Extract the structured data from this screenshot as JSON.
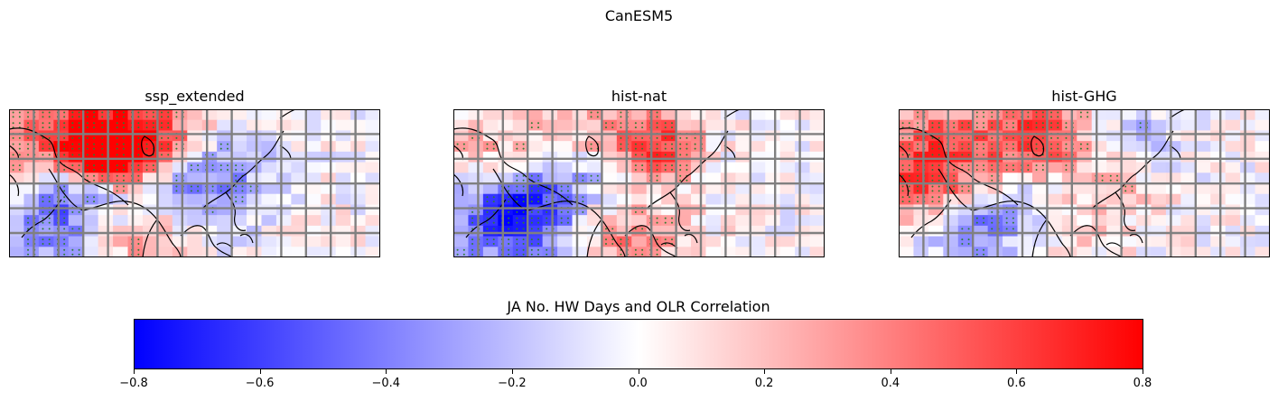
{
  "figure": {
    "suptitle": "CanESM5"
  },
  "panels": [
    {
      "title": "ssp_extended",
      "seed": 11,
      "blobs": [
        {
          "c": 1.5,
          "r": 2.5,
          "s": 4,
          "v": 0.45
        },
        {
          "c": 9,
          "r": 1.5,
          "s": 3,
          "v": 0.5
        },
        {
          "c": 5.5,
          "r": 3,
          "s": 3,
          "v": 0.4
        },
        {
          "c": 6,
          "r": 4.5,
          "s": 2,
          "v": 0.85
        },
        {
          "c": 12,
          "r": 7,
          "s": 3,
          "v": -0.4
        },
        {
          "c": 3.5,
          "r": 7,
          "s": 3,
          "v": -0.4
        },
        {
          "c": 2,
          "r": 10.5,
          "s": 3,
          "v": -0.3
        },
        {
          "c": 8.5,
          "r": 11.5,
          "s": 2.5,
          "v": 0.35
        },
        {
          "c": 5,
          "r": 6,
          "s": 2,
          "v": -0.35
        },
        {
          "c": 14.5,
          "r": 4,
          "s": 2.5,
          "v": -0.15
        }
      ]
    },
    {
      "title": "hist-nat",
      "seed": 23,
      "blobs": [
        {
          "c": 5.5,
          "r": 8.5,
          "s": 3,
          "v": -0.6
        },
        {
          "c": 3,
          "r": 10.5,
          "s": 3,
          "v": -0.4
        },
        {
          "c": 7,
          "r": 2,
          "s": 3,
          "v": 0.25
        },
        {
          "c": 12.5,
          "r": 2,
          "s": 2.5,
          "v": 0.35
        },
        {
          "c": 13,
          "r": 3.5,
          "s": 2,
          "v": 0.4
        },
        {
          "c": 11,
          "r": 11.5,
          "s": 3,
          "v": 0.45
        },
        {
          "c": 7,
          "r": 8.5,
          "s": 2,
          "v": 0.25
        },
        {
          "c": 9,
          "r": 5.5,
          "s": 3,
          "v": -0.2
        },
        {
          "c": 1.5,
          "r": 4,
          "s": 2.5,
          "v": 0.25
        }
      ]
    },
    {
      "title": "hist-GHG",
      "seed": 37,
      "blobs": [
        {
          "c": 10,
          "r": 1.5,
          "s": 3,
          "v": 0.45
        },
        {
          "c": 1,
          "r": 6.5,
          "s": 2.5,
          "v": 0.55
        },
        {
          "c": 7,
          "r": 4,
          "s": 3.5,
          "v": 0.4
        },
        {
          "c": 8.5,
          "r": 7.5,
          "s": 2.5,
          "v": -0.45
        },
        {
          "c": 4.5,
          "r": 11,
          "s": 2.5,
          "v": -0.45
        },
        {
          "c": 14,
          "r": 2,
          "s": 2.5,
          "v": -0.35
        },
        {
          "c": 13.5,
          "r": 7,
          "s": 2.5,
          "v": 0.2
        },
        {
          "c": 1.5,
          "r": 1.5,
          "s": 2.5,
          "v": 0.3
        },
        {
          "c": 10,
          "r": 10.5,
          "s": 3,
          "v": 0.15
        }
      ]
    }
  ],
  "colorbar": {
    "label": "JA No. HW Days and OLR Correlation",
    "min": -0.8,
    "max": 0.8,
    "ticks": [
      -0.8,
      -0.6,
      -0.4,
      -0.2,
      0.0,
      0.2,
      0.4,
      0.6,
      0.8
    ],
    "tick_labels": [
      "−0.8",
      "−0.6",
      "−0.4",
      "−0.2",
      "0.0",
      "0.2",
      "0.4",
      "0.6",
      "0.8"
    ],
    "colormap": "bwr",
    "low_color": "#0000ff",
    "mid_color": "#ffffff",
    "high_color": "#ff0000"
  },
  "style": {
    "grid_line_color": "#808080",
    "coastline_color": "#000000",
    "stipple_color": "#2e7d32",
    "significance_threshold": 0.28
  }
}
